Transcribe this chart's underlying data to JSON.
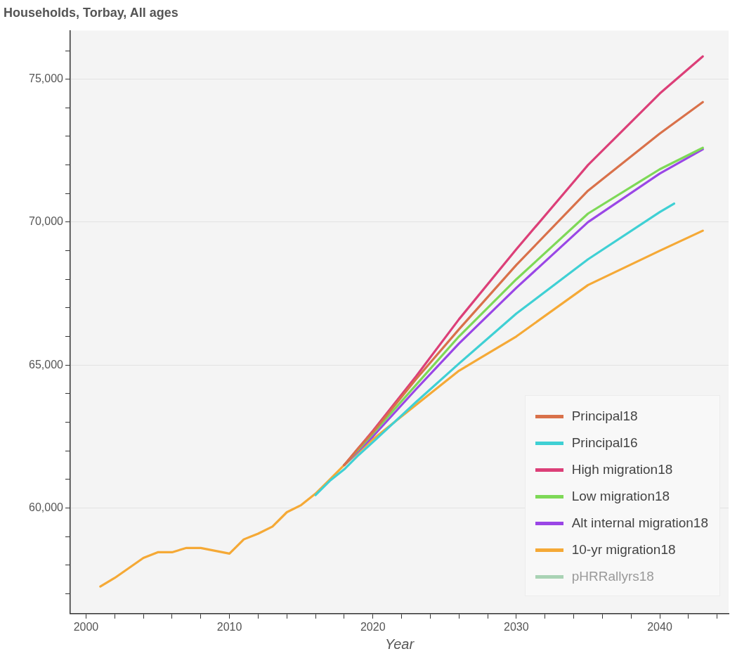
{
  "chart_data": {
    "type": "line",
    "title": "Households, Torbay, All ages",
    "xlabel": "Year",
    "xlim": [
      1998.9,
      2044.8
    ],
    "xticks": [
      2000,
      {
        "value": 2002,
        "label": null
      },
      {
        "value": 2004,
        "label": null
      },
      {
        "value": 2006,
        "label": null
      },
      {
        "value": 2008,
        "label": null
      },
      2010,
      {
        "value": 2012,
        "label": null
      },
      {
        "value": 2014,
        "label": null
      },
      {
        "value": 2016,
        "label": null
      },
      {
        "value": 2018,
        "label": null
      },
      2020,
      {
        "value": 2022,
        "label": null
      },
      {
        "value": 2024,
        "label": null
      },
      {
        "value": 2026,
        "label": null
      },
      {
        "value": 2028,
        "label": null
      },
      2030,
      {
        "value": 2032,
        "label": null
      },
      {
        "value": 2034,
        "label": null
      },
      {
        "value": 2036,
        "label": null
      },
      {
        "value": 2038,
        "label": null
      },
      2040,
      {
        "value": 2042,
        "label": null
      },
      {
        "value": 2044,
        "label": null
      }
    ],
    "ylim": [
      56300,
      76700
    ],
    "yticks": [
      {
        "value": 57000,
        "label": null
      },
      {
        "value": 58000,
        "label": null
      },
      {
        "value": 59000,
        "label": null
      },
      {
        "value": 60000,
        "label": "60,000"
      },
      {
        "value": 61000,
        "label": null
      },
      {
        "value": 62000,
        "label": null
      },
      {
        "value": 63000,
        "label": null
      },
      {
        "value": 64000,
        "label": null
      },
      {
        "value": 65000,
        "label": "65,000"
      },
      {
        "value": 66000,
        "label": null
      },
      {
        "value": 67000,
        "label": null
      },
      {
        "value": 68000,
        "label": null
      },
      {
        "value": 69000,
        "label": null
      },
      {
        "value": 70000,
        "label": "70,000"
      },
      {
        "value": 71000,
        "label": null
      },
      {
        "value": 72000,
        "label": null
      },
      {
        "value": 73000,
        "label": null
      },
      {
        "value": 74000,
        "label": null
      },
      {
        "value": 75000,
        "label": "75,000"
      },
      {
        "value": 76000,
        "label": null
      }
    ],
    "grid": "y",
    "legend": "bottom right",
    "marker": "none",
    "line_style": "solid",
    "series": [
      {
        "name": "Principal18",
        "color": "#d9714a",
        "x": [
          2018,
          2019,
          2020,
          2023,
          2026,
          2030,
          2035,
          2040,
          2043
        ],
        "values": [
          61500,
          62100,
          62650,
          64500,
          66250,
          68500,
          71100,
          73100,
          74200
        ]
      },
      {
        "name": "Principal16",
        "color": "#3fd0d4",
        "x": [
          2016,
          2017,
          2018,
          2019,
          2020,
          2023,
          2026,
          2030,
          2035,
          2040,
          2041
        ],
        "values": [
          60450,
          60950,
          61350,
          61850,
          62300,
          63700,
          65050,
          66800,
          68700,
          70350,
          70650
        ]
      },
      {
        "name": "High migration18",
        "color": "#dc3f78",
        "x": [
          2018,
          2019,
          2020,
          2023,
          2026,
          2030,
          2035,
          2040,
          2043
        ],
        "values": [
          61500,
          62100,
          62700,
          64600,
          66600,
          69050,
          72000,
          74500,
          75800
        ]
      },
      {
        "name": "Low migration18",
        "color": "#7ed957",
        "x": [
          2018,
          2019,
          2020,
          2023,
          2026,
          2030,
          2035,
          2040,
          2043
        ],
        "values": [
          61500,
          62050,
          62600,
          64300,
          66000,
          68000,
          70300,
          71850,
          72600
        ]
      },
      {
        "name": "Alt internal migration18",
        "color": "#9a46e6",
        "x": [
          2018,
          2019,
          2020,
          2023,
          2026,
          2030,
          2035,
          2040,
          2043
        ],
        "values": [
          61500,
          62000,
          62500,
          64150,
          65750,
          67700,
          70000,
          71700,
          72550
        ]
      },
      {
        "name": "10-yr migration18",
        "color": "#f5a936",
        "x": [
          2001,
          2002,
          2003,
          2004,
          2005,
          2006,
          2007,
          2008,
          2009,
          2010,
          2011,
          2012,
          2013,
          2014,
          2015,
          2016,
          2017,
          2018,
          2019,
          2020,
          2023,
          2026,
          2030,
          2035,
          2040,
          2043
        ],
        "values": [
          57250,
          57550,
          57900,
          58250,
          58450,
          58450,
          58600,
          58600,
          58500,
          58400,
          58900,
          59100,
          59350,
          59850,
          60100,
          60500,
          61000,
          61500,
          61950,
          62400,
          63600,
          64800,
          66000,
          67800,
          69000,
          69700
        ]
      },
      {
        "name": "pHRRallyrs18",
        "color": "#a9d3b4",
        "values": [
          null
        ]
      }
    ]
  }
}
